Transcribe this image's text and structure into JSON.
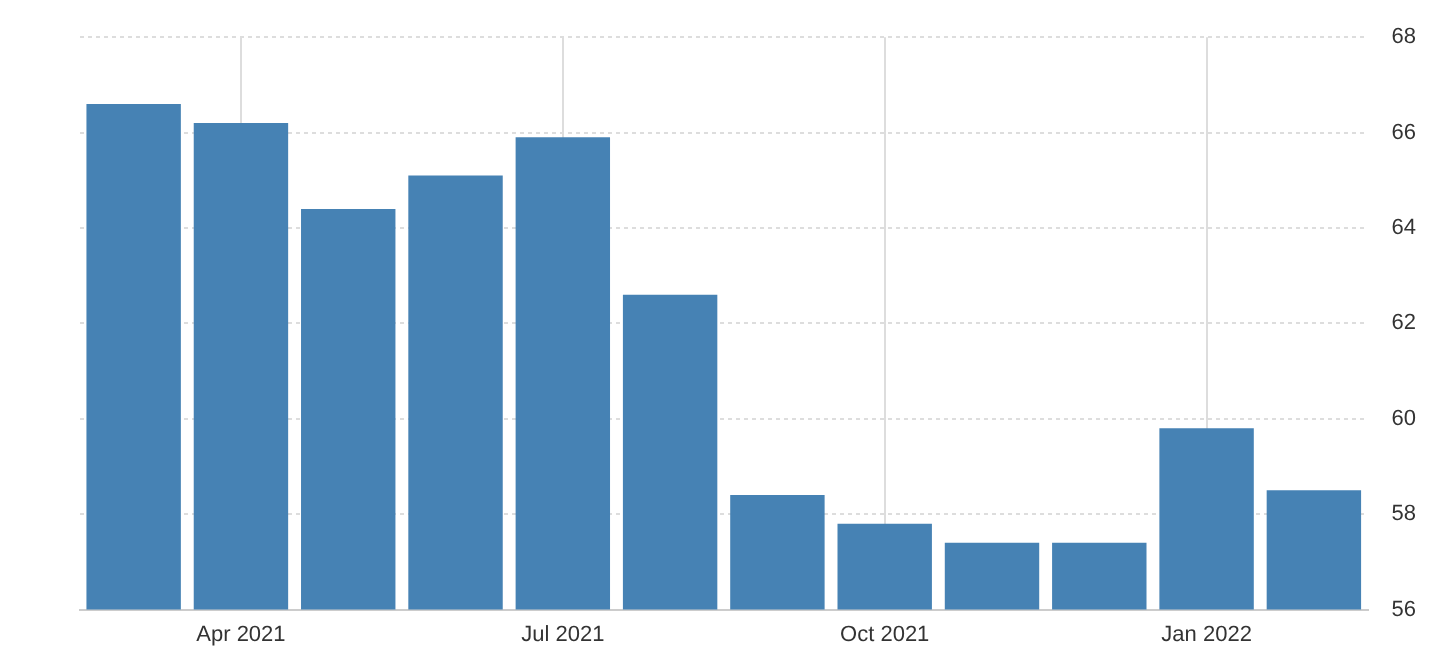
{
  "chart_data": {
    "type": "bar",
    "categories": [
      null,
      "Apr 2021",
      null,
      null,
      "Jul 2021",
      null,
      null,
      "Oct 2021",
      null,
      null,
      "Jan 2022",
      null
    ],
    "values": [
      66.6,
      66.2,
      64.4,
      65.1,
      65.9,
      62.6,
      58.4,
      57.8,
      57.4,
      57.4,
      59.8,
      58.5
    ],
    "color": "#4682b4",
    "ylim": [
      56,
      68
    ],
    "yticks": [
      56,
      58,
      60,
      62,
      64,
      66,
      68
    ],
    "grid": true,
    "legend": false
  }
}
